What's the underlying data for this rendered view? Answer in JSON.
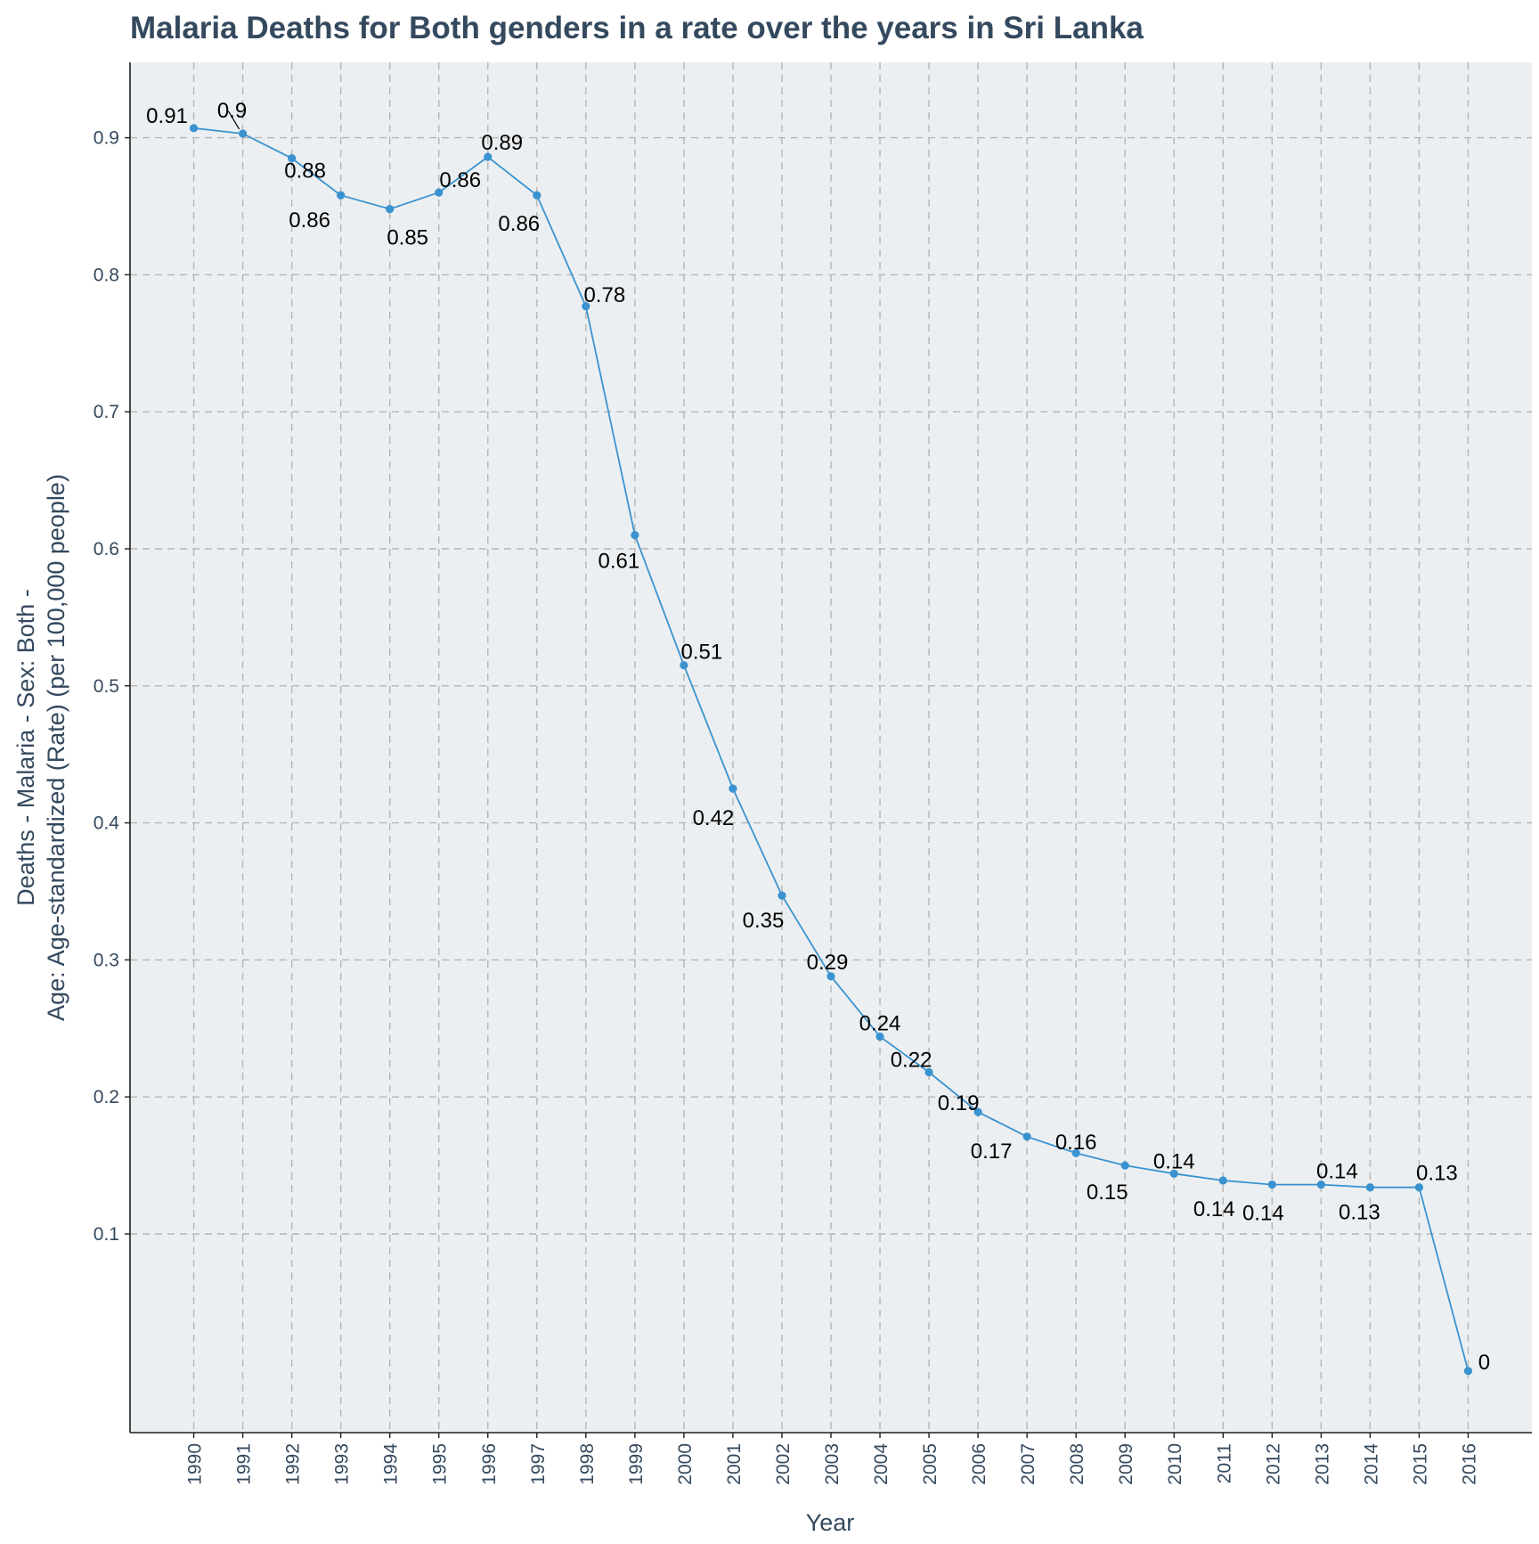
{
  "chart_data": {
    "type": "line",
    "title": "Malaria Deaths for Both genders in a rate over the years in Sri Lanka",
    "xlabel": "Year",
    "ylabel_line1": "Deaths - Malaria - Sex: Both -",
    "ylabel_line2": "Age: Age-standardized (Rate) (per 100,000 people)",
    "x": [
      1990,
      1991,
      1992,
      1993,
      1994,
      1995,
      1996,
      1997,
      1998,
      1999,
      2000,
      2001,
      2002,
      2003,
      2004,
      2005,
      2006,
      2007,
      2008,
      2009,
      2010,
      2011,
      2012,
      2013,
      2014,
      2015,
      2016
    ],
    "series": [
      {
        "values": [
          0.907,
          0.903,
          0.885,
          0.858,
          0.848,
          0.86,
          0.886,
          0.858,
          0.777,
          0.61,
          0.515,
          0.425,
          0.347,
          0.288,
          0.244,
          0.218,
          0.189,
          0.171,
          0.159,
          0.15,
          0.144,
          0.139,
          0.136,
          0.136,
          0.134,
          0.134,
          0.0
        ],
        "labels": [
          "0.91",
          "0.9",
          "0.88",
          "0.86",
          "0.85",
          "0.86",
          "0.89",
          "0.86",
          "0.78",
          "0.61",
          "0.51",
          "0.42",
          "0.35",
          "0.29",
          "0.24",
          "0.22",
          "0.19",
          "0.17",
          "0.16",
          "0.15",
          "0.14",
          "0.14",
          "0.14",
          "0.14",
          "0.13",
          "0.13",
          "0"
        ]
      }
    ],
    "yticks": [
      0.1,
      0.2,
      0.3,
      0.4,
      0.5,
      0.6,
      0.7,
      0.8,
      0.9
    ],
    "ytick_labels": [
      "0.1",
      "0.2",
      "0.3",
      "0.4",
      "0.5",
      "0.6",
      "0.7",
      "0.8",
      "0.9"
    ],
    "xtick_labels": [
      "1990",
      "1991",
      "1992",
      "1993",
      "1994",
      "1995",
      "1996",
      "1997",
      "1998",
      "1999",
      "2000",
      "2001",
      "2002",
      "2003",
      "2004",
      "2005",
      "2006",
      "2007",
      "2008",
      "2009",
      "2010",
      "2011",
      "2012",
      "2013",
      "2014",
      "2015",
      "2016"
    ],
    "ylim": [
      -0.045,
      0.955
    ],
    "xlim": [
      1988.7,
      2017.3
    ],
    "grid": true,
    "legend": "none",
    "colors": {
      "line": "#3a93d0",
      "panel": "#eceff1",
      "grid": "#b5b5b5",
      "text": "#34495e"
    }
  }
}
